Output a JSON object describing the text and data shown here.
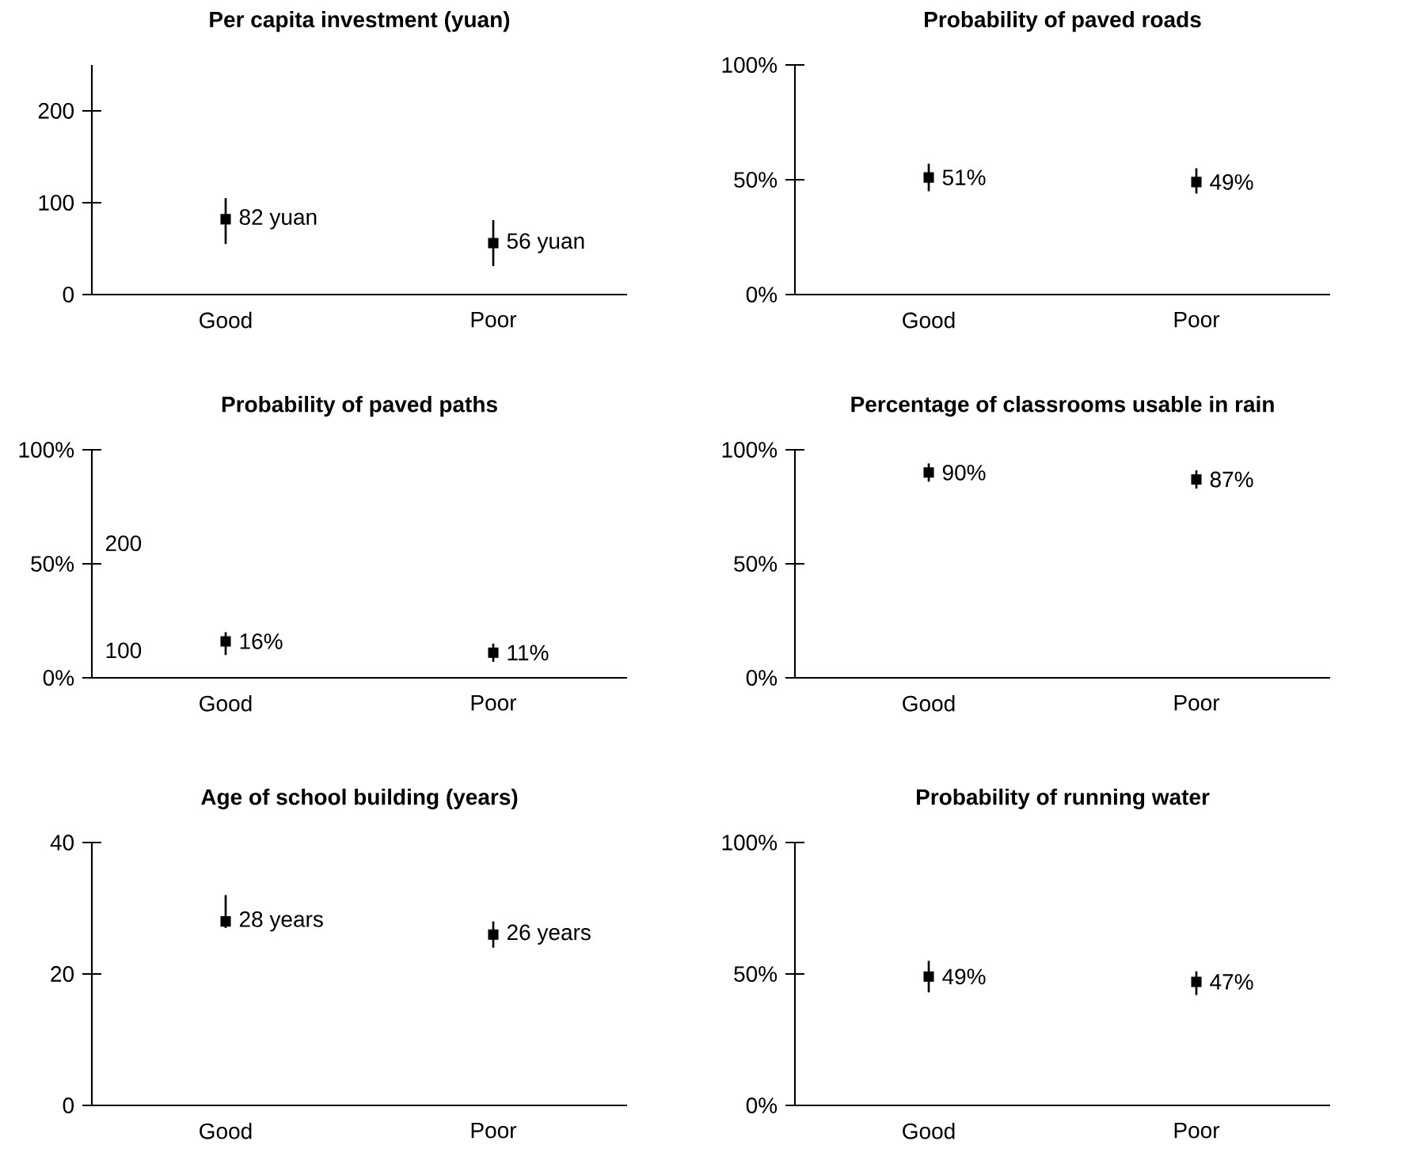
{
  "chart_data": [
    {
      "type": "scatter",
      "title": "Per capita investment (yuan)",
      "categories": [
        "Good",
        "Poor"
      ],
      "values": [
        82,
        56
      ],
      "errors": [
        [
          55,
          105
        ],
        [
          31,
          81
        ]
      ],
      "value_labels": [
        "82 yuan",
        "56 yuan"
      ],
      "color": "#000000",
      "marker": "square",
      "ylim": [
        0,
        250
      ],
      "yticks": [
        0,
        100,
        200
      ]
    },
    {
      "type": "scatter",
      "title": "Probability of paved roads",
      "categories": [
        "Good",
        "Poor"
      ],
      "values": [
        51,
        49
      ],
      "errors": [
        [
          45,
          57
        ],
        [
          44,
          55
        ]
      ],
      "value_labels": [
        "51%",
        "49%"
      ],
      "color": "#000000",
      "marker": "square",
      "ylim": [
        0,
        100
      ],
      "yticks": [
        {
          "value": 0,
          "label": "0%"
        },
        {
          "value": 50,
          "label": "50%"
        },
        {
          "value": 100,
          "label": "100%"
        }
      ]
    },
    {
      "type": "scatter",
      "title": "Probability of paved paths",
      "categories": [
        "Good",
        "Poor"
      ],
      "values": [
        16,
        11
      ],
      "errors": [
        [
          10,
          20
        ],
        [
          7,
          15
        ]
      ],
      "value_labels": [
        "16%",
        "11%"
      ],
      "color": "#000000",
      "marker": "square",
      "ylim": [
        0,
        100
      ],
      "yticks": [
        {
          "value": 0,
          "label": "0%"
        },
        {
          "value": 50,
          "label": "50%"
        },
        {
          "value": 100,
          "label": "100%"
        }
      ],
      "annotations": [
        "200",
        "100"
      ]
    },
    {
      "type": "scatter",
      "title": "Percentage of classrooms usable in rain",
      "categories": [
        "Good",
        "Poor"
      ],
      "values": [
        90,
        87
      ],
      "errors": [
        [
          86,
          94
        ],
        [
          83,
          91
        ]
      ],
      "value_labels": [
        "90%",
        "87%"
      ],
      "color": "#000000",
      "marker": "square",
      "ylim": [
        0,
        100
      ],
      "yticks": [
        {
          "value": 0,
          "label": "0%"
        },
        {
          "value": 50,
          "label": "50%"
        },
        {
          "value": 100,
          "label": "100%"
        }
      ]
    },
    {
      "type": "scatter",
      "title": "Age of school building (years)",
      "categories": [
        "Good",
        "Poor"
      ],
      "values": [
        28,
        26
      ],
      "errors": [
        [
          27,
          32
        ],
        [
          24,
          28
        ]
      ],
      "value_labels": [
        "28 years",
        "26 years"
      ],
      "color": "#000000",
      "marker": "square",
      "ylim": [
        0,
        40
      ],
      "yticks": [
        0,
        20,
        40
      ]
    },
    {
      "type": "scatter",
      "title": "Probability of running water",
      "categories": [
        "Good",
        "Poor"
      ],
      "values": [
        49,
        47
      ],
      "errors": [
        [
          43,
          55
        ],
        [
          42,
          51
        ]
      ],
      "value_labels": [
        "49%",
        "47%"
      ],
      "color": "#000000",
      "marker": "square",
      "ylim": [
        0,
        100
      ],
      "yticks": [
        {
          "value": 0,
          "label": "0%"
        },
        {
          "value": 50,
          "label": "50%"
        },
        {
          "value": 100,
          "label": "100%"
        }
      ]
    }
  ]
}
